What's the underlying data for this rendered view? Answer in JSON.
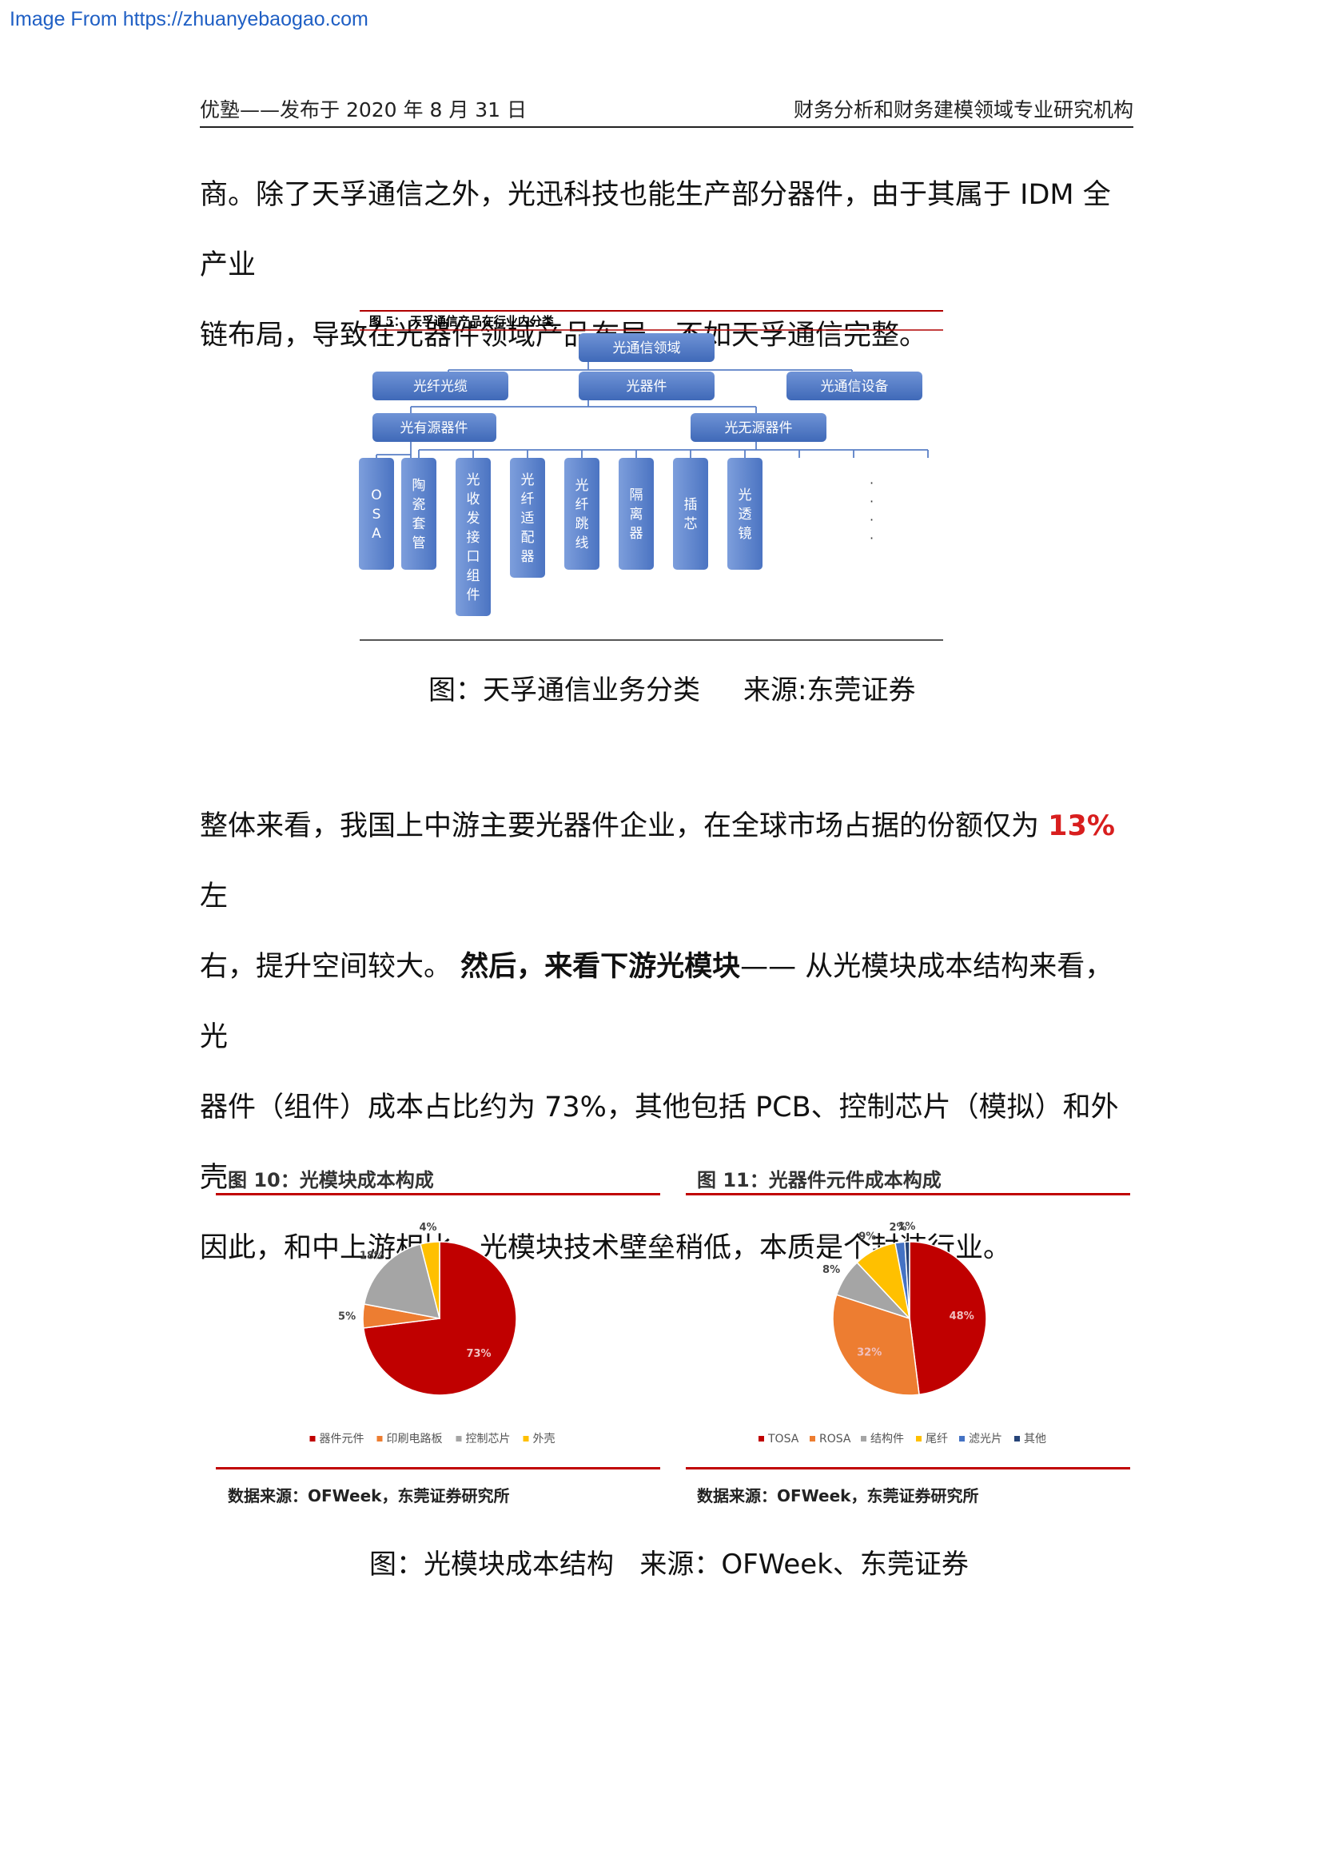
{
  "watermark": "Image From https://zhuanyebaogao.com",
  "header": {
    "left": "优塾——发布于 2020 年 8 月 31 日",
    "right": "财务分析和财务建模领域专业研究机构"
  },
  "para1": {
    "line1": "商。除了天孚通信之外，光迅科技也能生产部分器件，由于其属于 IDM 全产业",
    "line2": "链布局，导致在光器件领域产品布局，不如天孚通信完整。"
  },
  "figure5": {
    "title": "图 5： 天孚通信产品在行业内分类",
    "nodes": {
      "root": "光通信领域",
      "level1": [
        "光纤光缆",
        "光器件",
        "光通信设备"
      ],
      "level2": [
        "光有源器件",
        "光无源器件"
      ],
      "leaves": [
        "OSA",
        "陶瓷套管",
        "光收发接口组件",
        "光纤适配器",
        "光纤跳线",
        "隔离器",
        "插芯",
        "光透镜"
      ],
      "ellipsis": "······"
    },
    "caption_left": "图：天孚通信业务分类",
    "caption_right": "来源:东莞证券"
  },
  "para2": {
    "l1_a": "整体来看，我国上中游主要光器件企业，在全球市场占据的份额仅为 ",
    "l1_red": "13%",
    "l1_b": "左",
    "l2_a": "右，提升空间较大。 ",
    "l2_bold": "然后，来看下游光模块",
    "l2_b": "—— 从光模块成本结构来看，光",
    "l3": "器件（组件）成本占比约为 73%，其他包括 PCB、控制芯片（模拟）和外壳。",
    "l4": "因此，和中上游相比，光模块技术壁垒稍低，本质是个封装行业。"
  },
  "chart_data": [
    {
      "type": "pie",
      "title": "图 10：光模块成本构成",
      "categories": [
        "器件元件",
        "印刷电路板",
        "控制芯片",
        "外壳"
      ],
      "values": [
        73,
        5,
        18,
        4
      ],
      "labels": [
        "73%",
        "5%",
        "18%",
        "4%"
      ],
      "colors": [
        "#c00000",
        "#ed7d31",
        "#a5a5a5",
        "#ffc000"
      ],
      "legend": "bottom",
      "source": "数据来源：OFWeek，东莞证券研究所"
    },
    {
      "type": "pie",
      "title": "图 11：光器件元件成本构成",
      "categories": [
        "TOSA",
        "ROSA",
        "结构件",
        "尾纤",
        "滤光片",
        "其他"
      ],
      "values": [
        48,
        32,
        8,
        9,
        2,
        1
      ],
      "labels": [
        "48%",
        "32%",
        "8%",
        "9%",
        "2%",
        "1%"
      ],
      "colors": [
        "#c00000",
        "#ed7d31",
        "#a5a5a5",
        "#ffc000",
        "#4472c4",
        "#264478"
      ],
      "legend": "bottom",
      "source": "数据来源：OFWeek，东莞证券研究所"
    }
  ],
  "caption2": "图：光模块成本结构   来源：OFWeek、东莞证券"
}
